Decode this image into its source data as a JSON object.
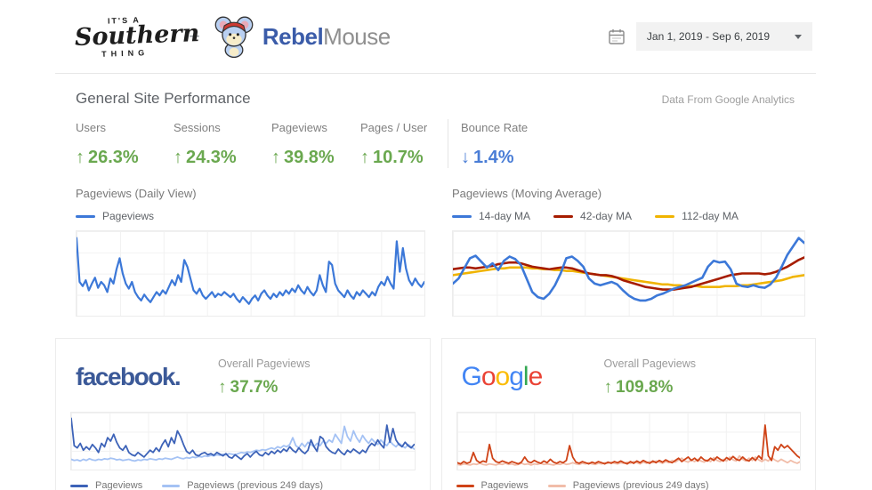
{
  "header": {
    "logo_southern": {
      "line1": "IT'S A",
      "line2": "Southern",
      "line3": "THING"
    },
    "plus": "+",
    "brand": {
      "rebel": "Rebel",
      "mouse": "Mouse"
    },
    "brand_colors": {
      "rebel": "#3b5ca9",
      "mouse": "#8f8f8f"
    },
    "date_range": {
      "value": "Jan 1, 2019 - Sep 6, 2019"
    }
  },
  "performance": {
    "title": "General Site Performance",
    "source_note": "Data From Google Analytics",
    "metrics": [
      {
        "label": "Users",
        "arrow": "↑",
        "value": "26.3%",
        "color": "#6aa84f"
      },
      {
        "label": "Sessions",
        "arrow": "↑",
        "value": "24.3%",
        "color": "#6aa84f"
      },
      {
        "label": "Pageviews",
        "arrow": "↑",
        "value": "39.8%",
        "color": "#6aa84f"
      },
      {
        "label": "Pages / User",
        "arrow": "↑",
        "value": "10.7%",
        "color": "#6aa84f"
      },
      {
        "label": "Bounce Rate",
        "arrow": "↓",
        "value": "1.4%",
        "color": "#4a7dd6"
      }
    ]
  },
  "cards": {
    "facebook": {
      "logo": "facebook.",
      "logo_color": "#3b5998",
      "label": "Overall Pageviews",
      "arrow": "↑",
      "value": "37.7%",
      "value_color": "#6aa84f"
    },
    "google": {
      "label": "Overall Pageviews",
      "arrow": "↑",
      "value": "109.8%",
      "value_color": "#6aa84f",
      "logo_letters": [
        {
          "ch": "G",
          "color": "#4285F4"
        },
        {
          "ch": "o",
          "color": "#EA4335"
        },
        {
          "ch": "o",
          "color": "#FBBC05"
        },
        {
          "ch": "g",
          "color": "#4285F4"
        },
        {
          "ch": "l",
          "color": "#34A853"
        },
        {
          "ch": "e",
          "color": "#EA4335"
        }
      ]
    }
  },
  "chart_data": [
    {
      "type": "line",
      "title": "Pageviews (Daily View)",
      "legend_position": "top",
      "grid": true,
      "note": "y-axis unlabeled; values normalized 0-100",
      "ylim": [
        0,
        100
      ],
      "series": [
        {
          "name": "Pageviews",
          "color": "#3c78d8",
          "stroke_width": 2.2,
          "values": [
            92,
            40,
            35,
            42,
            30,
            38,
            45,
            33,
            40,
            36,
            28,
            44,
            38,
            55,
            68,
            50,
            38,
            32,
            40,
            28,
            22,
            18,
            25,
            20,
            16,
            22,
            28,
            24,
            30,
            26,
            34,
            42,
            36,
            48,
            40,
            66,
            58,
            44,
            30,
            26,
            32,
            24,
            20,
            24,
            28,
            22,
            26,
            24,
            28,
            25,
            22,
            26,
            20,
            16,
            22,
            18,
            14,
            20,
            24,
            18,
            26,
            30,
            24,
            20,
            26,
            22,
            28,
            24,
            30,
            26,
            32,
            28,
            36,
            30,
            26,
            34,
            28,
            24,
            30,
            48,
            36,
            28,
            64,
            60,
            38,
            30,
            26,
            22,
            30,
            24,
            20,
            28,
            24,
            30,
            26,
            22,
            28,
            24,
            34,
            40,
            36,
            46,
            38,
            32,
            88,
            52,
            80,
            56,
            42,
            36,
            44,
            38,
            34,
            40
          ]
        }
      ]
    },
    {
      "type": "line",
      "title": "Pageviews (Moving Average)",
      "legend_position": "top",
      "grid": true,
      "note": "y-axis unlabeled; values normalized 0-100",
      "ylim": [
        0,
        100
      ],
      "series": [
        {
          "name": "14-day MA",
          "color": "#3c78d8",
          "stroke_width": 2.6,
          "values": [
            38,
            44,
            56,
            68,
            71,
            64,
            57,
            62,
            54,
            65,
            70,
            67,
            60,
            44,
            28,
            22,
            20,
            26,
            36,
            50,
            68,
            70,
            65,
            58,
            44,
            38,
            36,
            38,
            40,
            37,
            30,
            24,
            20,
            18,
            18,
            20,
            24,
            26,
            29,
            32,
            34,
            36,
            39,
            42,
            45,
            58,
            65,
            63,
            64,
            55,
            38,
            35,
            34,
            36,
            34,
            33,
            37,
            45,
            58,
            72,
            82,
            92,
            86
          ]
        },
        {
          "name": "42-day MA",
          "color": "#a61c00",
          "stroke_width": 2.6,
          "values": [
            55,
            56,
            57,
            57,
            56,
            57,
            58,
            59,
            61,
            62,
            63,
            63,
            62,
            60,
            58,
            57,
            56,
            55,
            56,
            57,
            57,
            56,
            54,
            52,
            50,
            49,
            48,
            48,
            47,
            45,
            42,
            40,
            38,
            36,
            34,
            33,
            32,
            31,
            31,
            31,
            32,
            33,
            34,
            36,
            38,
            40,
            42,
            44,
            46,
            48,
            49,
            50,
            50,
            50,
            50,
            49,
            50,
            52,
            55,
            58,
            62,
            66,
            69
          ]
        },
        {
          "name": "112-day MA",
          "color": "#f0b400",
          "stroke_width": 2.6,
          "values": [
            48,
            49,
            50,
            51,
            52,
            53,
            54,
            55,
            56,
            56,
            57,
            57,
            57,
            57,
            56,
            56,
            55,
            55,
            54,
            54,
            53,
            53,
            52,
            51,
            50,
            49,
            48,
            47,
            46,
            45,
            44,
            43,
            42,
            41,
            40,
            39,
            38,
            37,
            37,
            36,
            36,
            35,
            35,
            35,
            34,
            34,
            34,
            34,
            35,
            35,
            35,
            36,
            36,
            37,
            38,
            39,
            40,
            41,
            42,
            44,
            46,
            47,
            48
          ]
        }
      ]
    },
    {
      "type": "line",
      "title": "Overall Pageviews",
      "platform": "facebook",
      "change": "↑ 37.7%",
      "legend_position": "bottom",
      "grid": true,
      "note": "y-axis unlabeled; values normalized 0-100",
      "ylim": [
        0,
        100
      ],
      "series": [
        {
          "name": "Pageviews",
          "color": "#3d63b8",
          "stroke_width": 1.8,
          "values": [
            90,
            42,
            38,
            46,
            34,
            40,
            35,
            44,
            38,
            30,
            46,
            40,
            56,
            50,
            62,
            48,
            38,
            34,
            42,
            30,
            26,
            24,
            30,
            26,
            22,
            28,
            34,
            30,
            38,
            32,
            44,
            52,
            40,
            56,
            46,
            68,
            58,
            44,
            32,
            28,
            34,
            26,
            24,
            28,
            30,
            26,
            28,
            25,
            30,
            27,
            24,
            28,
            22,
            20,
            26,
            22,
            18,
            24,
            28,
            22,
            28,
            32,
            26,
            24,
            30,
            26,
            32,
            28,
            34,
            30,
            36,
            32,
            40,
            34,
            30,
            38,
            32,
            28,
            34,
            52,
            40,
            32,
            58,
            54,
            40,
            34,
            30,
            28,
            36,
            30,
            26,
            34,
            30,
            36,
            32,
            28,
            34,
            30,
            40,
            46,
            42,
            52,
            44,
            38,
            78,
            48,
            72,
            52,
            44,
            40,
            48,
            42,
            38,
            44
          ]
        },
        {
          "name": "Pageviews (previous 249 days)",
          "color": "#a4c2f4",
          "stroke_width": 1.8,
          "values": [
            18,
            16,
            17,
            15,
            18,
            16,
            19,
            17,
            16,
            18,
            17,
            19,
            18,
            20,
            19,
            17,
            18,
            16,
            17,
            18,
            16,
            15,
            17,
            16,
            18,
            17,
            19,
            18,
            17,
            19,
            18,
            20,
            19,
            18,
            20,
            22,
            20,
            19,
            21,
            20,
            22,
            21,
            23,
            22,
            24,
            23,
            25,
            24,
            26,
            25,
            27,
            26,
            28,
            27,
            26,
            28,
            30,
            29,
            31,
            30,
            32,
            34,
            33,
            35,
            34,
            36,
            38,
            36,
            40,
            38,
            42,
            40,
            44,
            56,
            42,
            38,
            46,
            40,
            48,
            44,
            40,
            46,
            42,
            50,
            46,
            52,
            48,
            62,
            54,
            46,
            76,
            58,
            50,
            68,
            56,
            48,
            60,
            52,
            46,
            54,
            48,
            44,
            52,
            46,
            42,
            50,
            44,
            40,
            46,
            42,
            38,
            44,
            40,
            36
          ]
        }
      ]
    },
    {
      "type": "line",
      "title": "Overall Pageviews",
      "platform": "google",
      "change": "↑ 109.8%",
      "legend_position": "bottom",
      "grid": true,
      "note": "y-axis unlabeled; values normalized 0-100",
      "ylim": [
        0,
        100
      ],
      "series": [
        {
          "name": "Pageviews",
          "color": "#cf4317",
          "stroke_width": 1.8,
          "values": [
            12,
            10,
            14,
            11,
            13,
            30,
            16,
            12,
            15,
            13,
            44,
            20,
            14,
            12,
            15,
            13,
            11,
            14,
            12,
            10,
            13,
            22,
            14,
            12,
            16,
            13,
            11,
            15,
            12,
            18,
            13,
            11,
            14,
            12,
            16,
            42,
            22,
            13,
            11,
            14,
            12,
            10,
            13,
            11,
            14,
            12,
            10,
            13,
            11,
            14,
            12,
            15,
            12,
            10,
            14,
            11,
            15,
            12,
            16,
            13,
            11,
            15,
            12,
            16,
            13,
            17,
            14,
            12,
            16,
            20,
            14,
            18,
            22,
            16,
            20,
            15,
            22,
            17,
            15,
            20,
            16,
            22,
            18,
            15,
            21,
            17,
            23,
            18,
            16,
            22,
            17,
            15,
            21,
            16,
            24,
            18,
            78,
            24,
            16,
            40,
            34,
            44,
            38,
            42,
            36,
            30,
            24,
            20
          ]
        },
        {
          "name": "Pageviews (previous 249 days)",
          "color": "#f1bda9",
          "stroke_width": 1.8,
          "values": [
            9,
            8,
            10,
            9,
            8,
            10,
            9,
            11,
            9,
            8,
            10,
            9,
            8,
            10,
            9,
            11,
            9,
            10,
            8,
            9,
            11,
            9,
            10,
            8,
            10,
            9,
            11,
            9,
            10,
            9,
            8,
            10,
            9,
            11,
            9,
            10,
            12,
            10,
            9,
            11,
            10,
            12,
            10,
            9,
            11,
            10,
            12,
            11,
            13,
            11,
            10,
            12,
            11,
            13,
            11,
            14,
            12,
            10,
            13,
            11,
            14,
            12,
            15,
            13,
            11,
            14,
            12,
            16,
            13,
            17,
            20,
            15,
            13,
            17,
            14,
            18,
            15,
            13,
            17,
            14,
            21,
            16,
            14,
            18,
            15,
            22,
            17,
            15,
            24,
            18,
            15,
            20,
            16,
            22,
            17,
            14,
            18,
            15,
            21,
            17,
            14,
            18,
            15,
            12,
            16,
            13,
            11,
            14
          ]
        }
      ]
    }
  ]
}
